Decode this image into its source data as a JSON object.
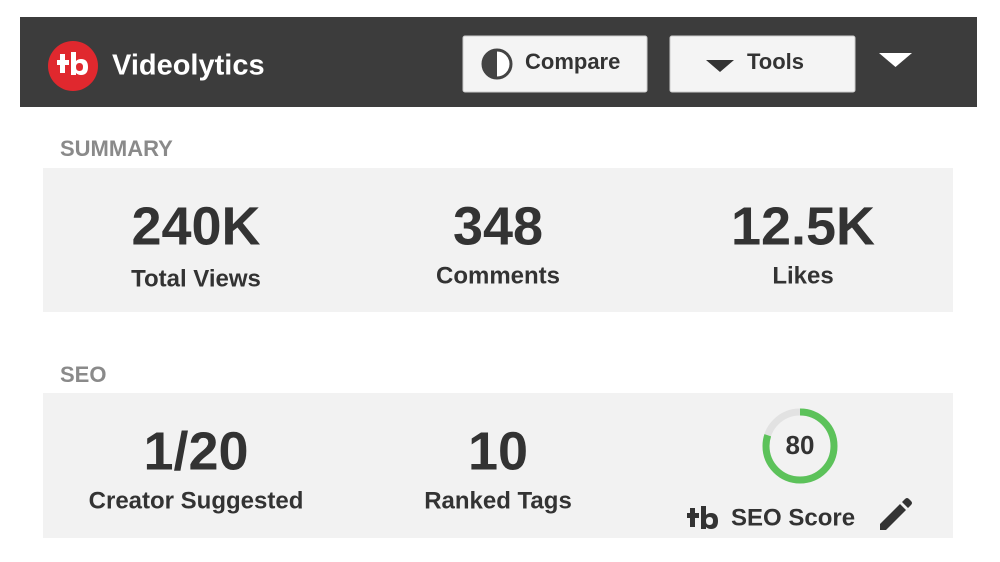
{
  "header": {
    "title": "Videolytics",
    "buttons": [
      "Compare",
      "Tools"
    ]
  },
  "summary": {
    "title": "SUMMARY",
    "stats": [
      {
        "value": "240K",
        "label": "Total Views"
      },
      {
        "value": "348",
        "label": "Comments"
      },
      {
        "value": "12.5K",
        "label": "Likes"
      }
    ]
  },
  "seo": {
    "title": "SEO",
    "stats": [
      {
        "value": "1/20",
        "label": "Creator Suggested"
      },
      {
        "value": "10",
        "label": "Ranked Tags"
      }
    ],
    "score": {
      "value": 80,
      "label": "SEO Score"
    }
  }
}
